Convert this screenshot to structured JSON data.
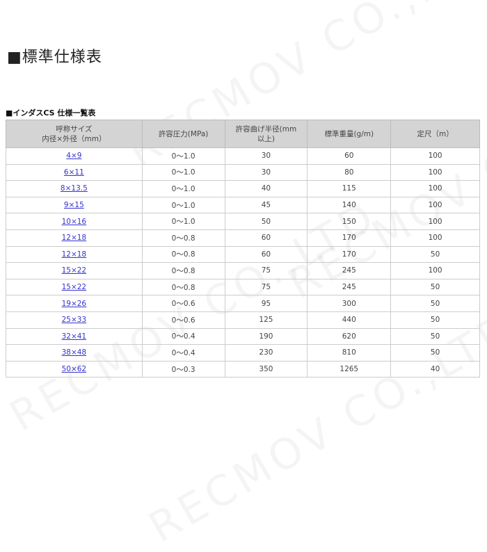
{
  "page_title": "■標準仕様表",
  "table_title": "■インダスCS 仕様一覧表",
  "watermark": "RECMOV CO.,LTD",
  "headers": [
    "呼称サイズ\n内径×外径（mm）",
    "許容圧力(MPa)",
    "許容曲げ半径(mm以上)",
    "標準重量(g/m)",
    "定尺（m）"
  ],
  "rows": [
    [
      "4×9",
      "0〜1.0",
      "30",
      "60",
      "100"
    ],
    [
      "6×11",
      "0〜1.0",
      "30",
      "80",
      "100"
    ],
    [
      "8×13.5",
      "0〜1.0",
      "40",
      "115",
      "100"
    ],
    [
      "9×15",
      "0〜1.0",
      "45",
      "140",
      "100"
    ],
    [
      "10×16",
      "0〜1.0",
      "50",
      "150",
      "100"
    ],
    [
      "12×18",
      "0〜0.8",
      "60",
      "170",
      "100"
    ],
    [
      "12×18",
      "0〜0.8",
      "60",
      "170",
      "50"
    ],
    [
      "15×22",
      "0〜0.8",
      "75",
      "245",
      "100"
    ],
    [
      "15×22",
      "0〜0.8",
      "75",
      "245",
      "50"
    ],
    [
      "19×26",
      "0〜0.6",
      "95",
      "300",
      "50"
    ],
    [
      "25×33",
      "0〜0.6",
      "125",
      "440",
      "50"
    ],
    [
      "32×41",
      "0〜0.4",
      "190",
      "620",
      "50"
    ],
    [
      "38×48",
      "0〜0.4",
      "230",
      "810",
      "50"
    ],
    [
      "50×62",
      "0〜0.3",
      "350",
      "1265",
      "40"
    ]
  ]
}
